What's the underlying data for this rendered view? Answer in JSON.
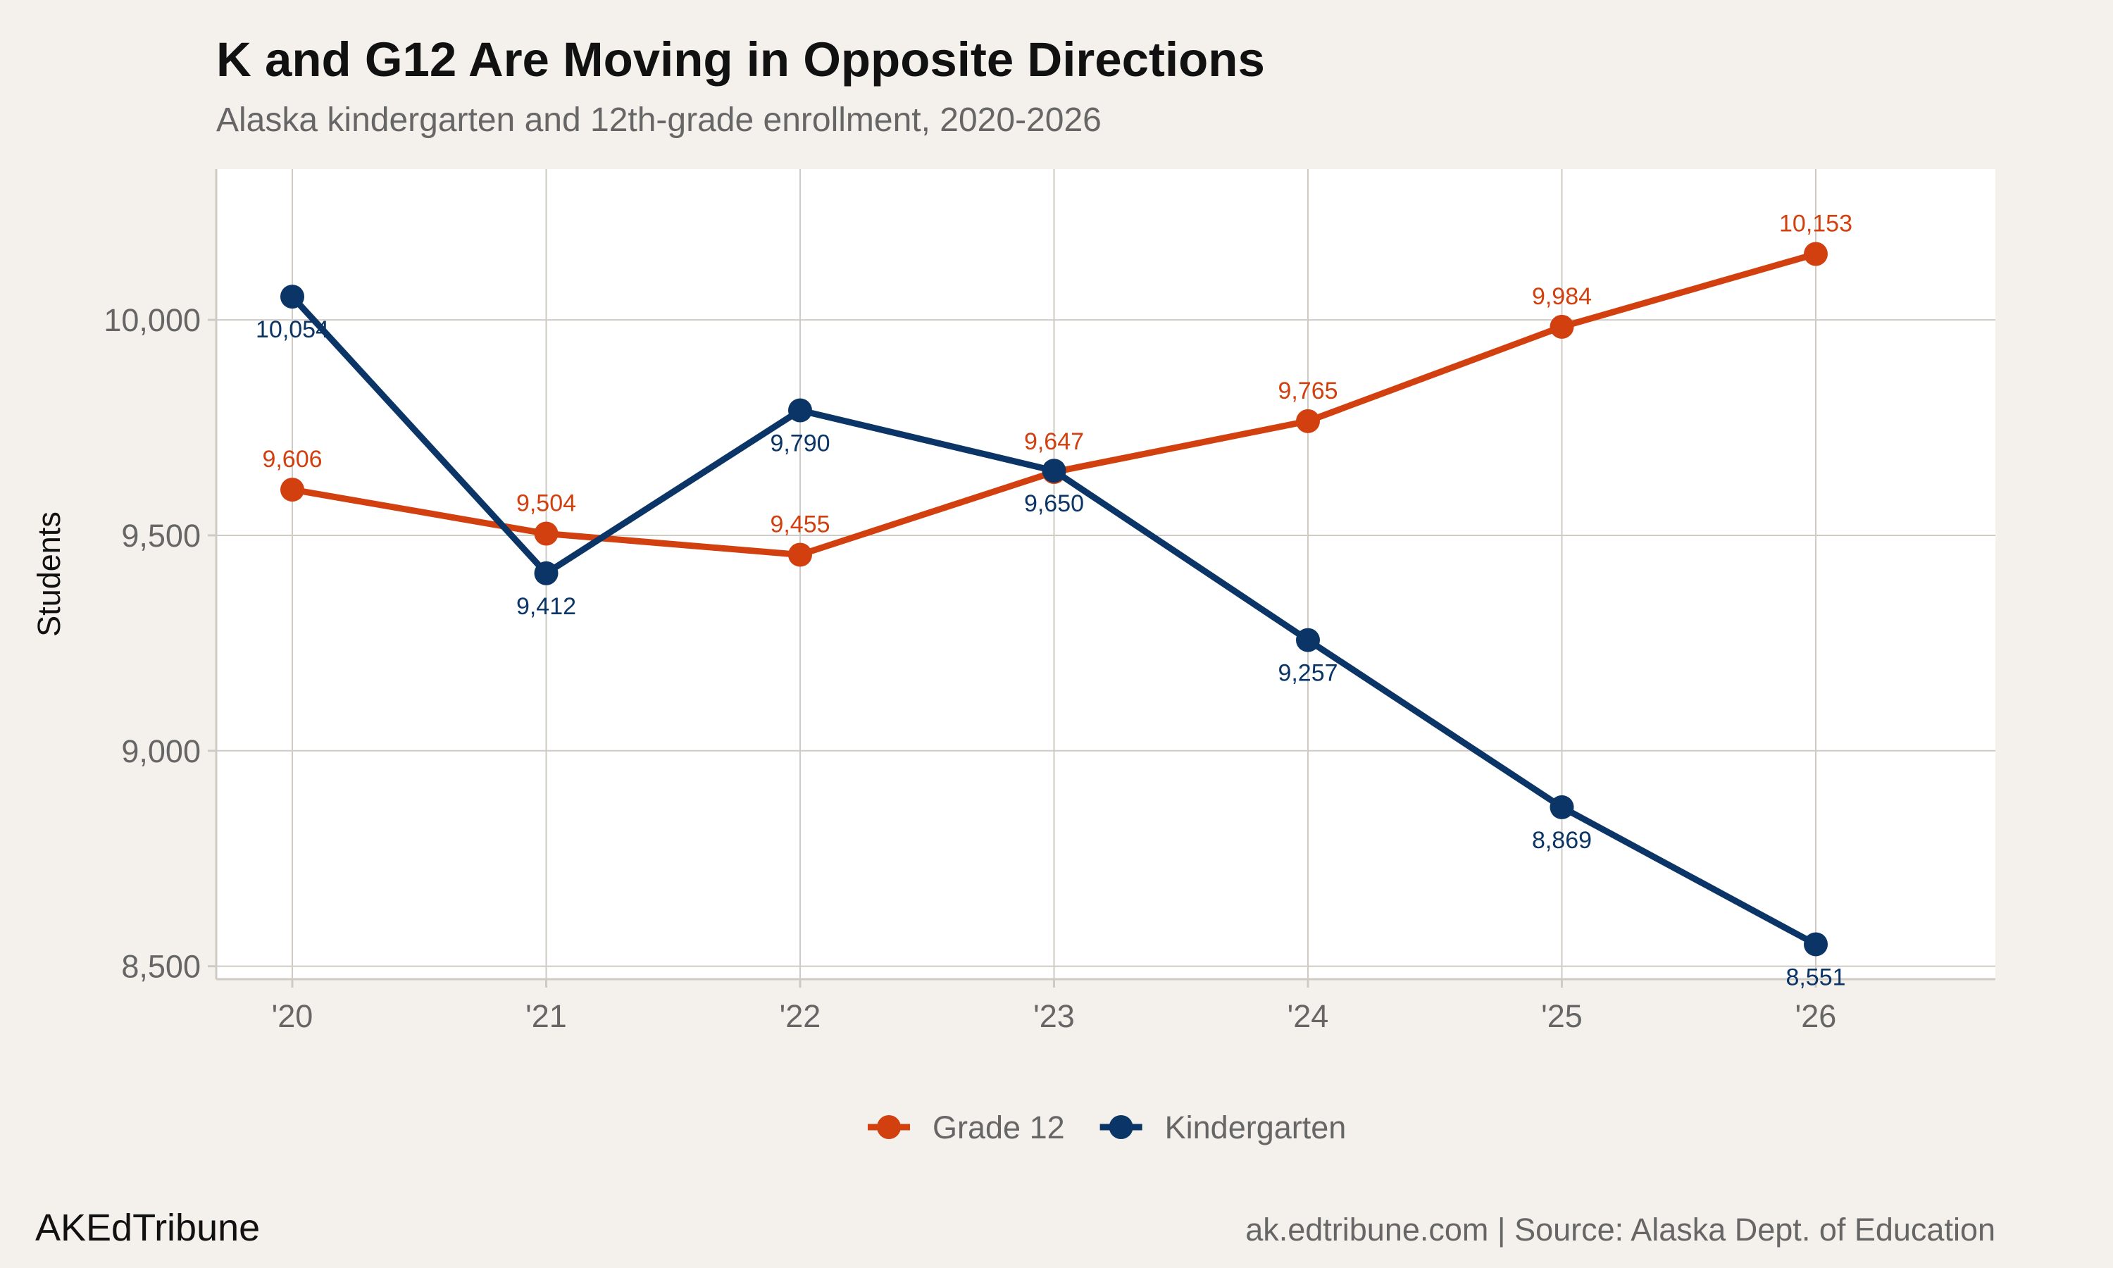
{
  "title": "K and G12 Are Moving in Opposite Directions",
  "subtitle": "Alaska kindergarten and 12th-grade enrollment, 2020-2026",
  "footer": {
    "brand": "AKEdTribune",
    "source": "ak.edtribune.com | Source: Alaska Dept. of Education"
  },
  "colors": {
    "grade12": "#d3400f",
    "kindergarten": "#0b3566",
    "background": "#f4f1ec",
    "panel": "#ffffff",
    "grid": "#cfcbc4"
  },
  "chart_data": {
    "type": "line",
    "title": "K and G12 Are Moving in Opposite Directions",
    "subtitle": "Alaska kindergarten and 12th-grade enrollment, 2020-2026",
    "xlabel": "",
    "ylabel": "Students",
    "categories": [
      "'20",
      "'21",
      "'22",
      "'23",
      "'24",
      "'25",
      "'26"
    ],
    "yticks": [
      8500,
      9000,
      9500,
      10000
    ],
    "ytick_labels": [
      "8,500",
      "9,000",
      "9,500",
      "10,000"
    ],
    "ylim": [
      8470,
      10350
    ],
    "grid": true,
    "legend_position": "bottom",
    "series": [
      {
        "name": "Grade 12",
        "color": "#d3400f",
        "values": [
          9606,
          9504,
          9455,
          9647,
          9765,
          9984,
          10153
        ],
        "labels": [
          "9,606",
          "9,504",
          "9,455",
          "9,647",
          "9,765",
          "9,984",
          "10,153"
        ],
        "label_position": "above"
      },
      {
        "name": "Kindergarten",
        "color": "#0b3566",
        "values": [
          10054,
          9412,
          9790,
          9650,
          9257,
          8869,
          8551
        ],
        "labels": [
          "10,054",
          "9,412",
          "9,790",
          "9,650",
          "9,257",
          "8,869",
          "8,551"
        ],
        "label_position": "below"
      }
    ]
  }
}
